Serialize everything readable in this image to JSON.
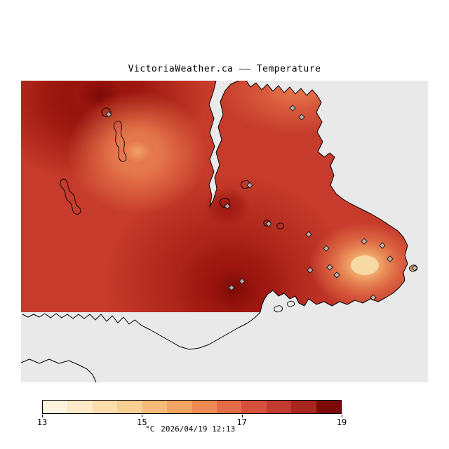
{
  "title": "VictoriaWeather.ca —— Temperature",
  "map": {
    "colors": {
      "sea": "#e9e9e9",
      "base": "#c63b2b",
      "dark": "#9c160f",
      "darkest": "#7e0a07",
      "light_orange": "#f0a265",
      "orange_mid": "#e5744a",
      "pale_core": "#f8d8a3",
      "coastline": "#000000",
      "marker_fill": "#c0c0c0",
      "marker_stroke": "#1f1f1f"
    }
  },
  "legend": {
    "ticks": [
      "13",
      "15",
      "17",
      "19"
    ],
    "unit": "°C",
    "timestamp": "2026/04/19 12:13",
    "colors": [
      "#fdf4df",
      "#fceac9",
      "#fadeae",
      "#f8cf93",
      "#f5bb7a",
      "#f1a464",
      "#ed8a53",
      "#e46c47",
      "#d5513c",
      "#c23b30",
      "#a82620",
      "#7e0a07"
    ]
  },
  "chart_data": {
    "type": "heatmap",
    "title": "VictoriaWeather.ca —— Temperature",
    "colorbar": {
      "min": 13,
      "max": 19,
      "tick_labels": [
        "13",
        "15",
        "17",
        "19"
      ],
      "segments": 12,
      "unit": "°C"
    },
    "timestamp": "2026/04/19 12:13"
  }
}
